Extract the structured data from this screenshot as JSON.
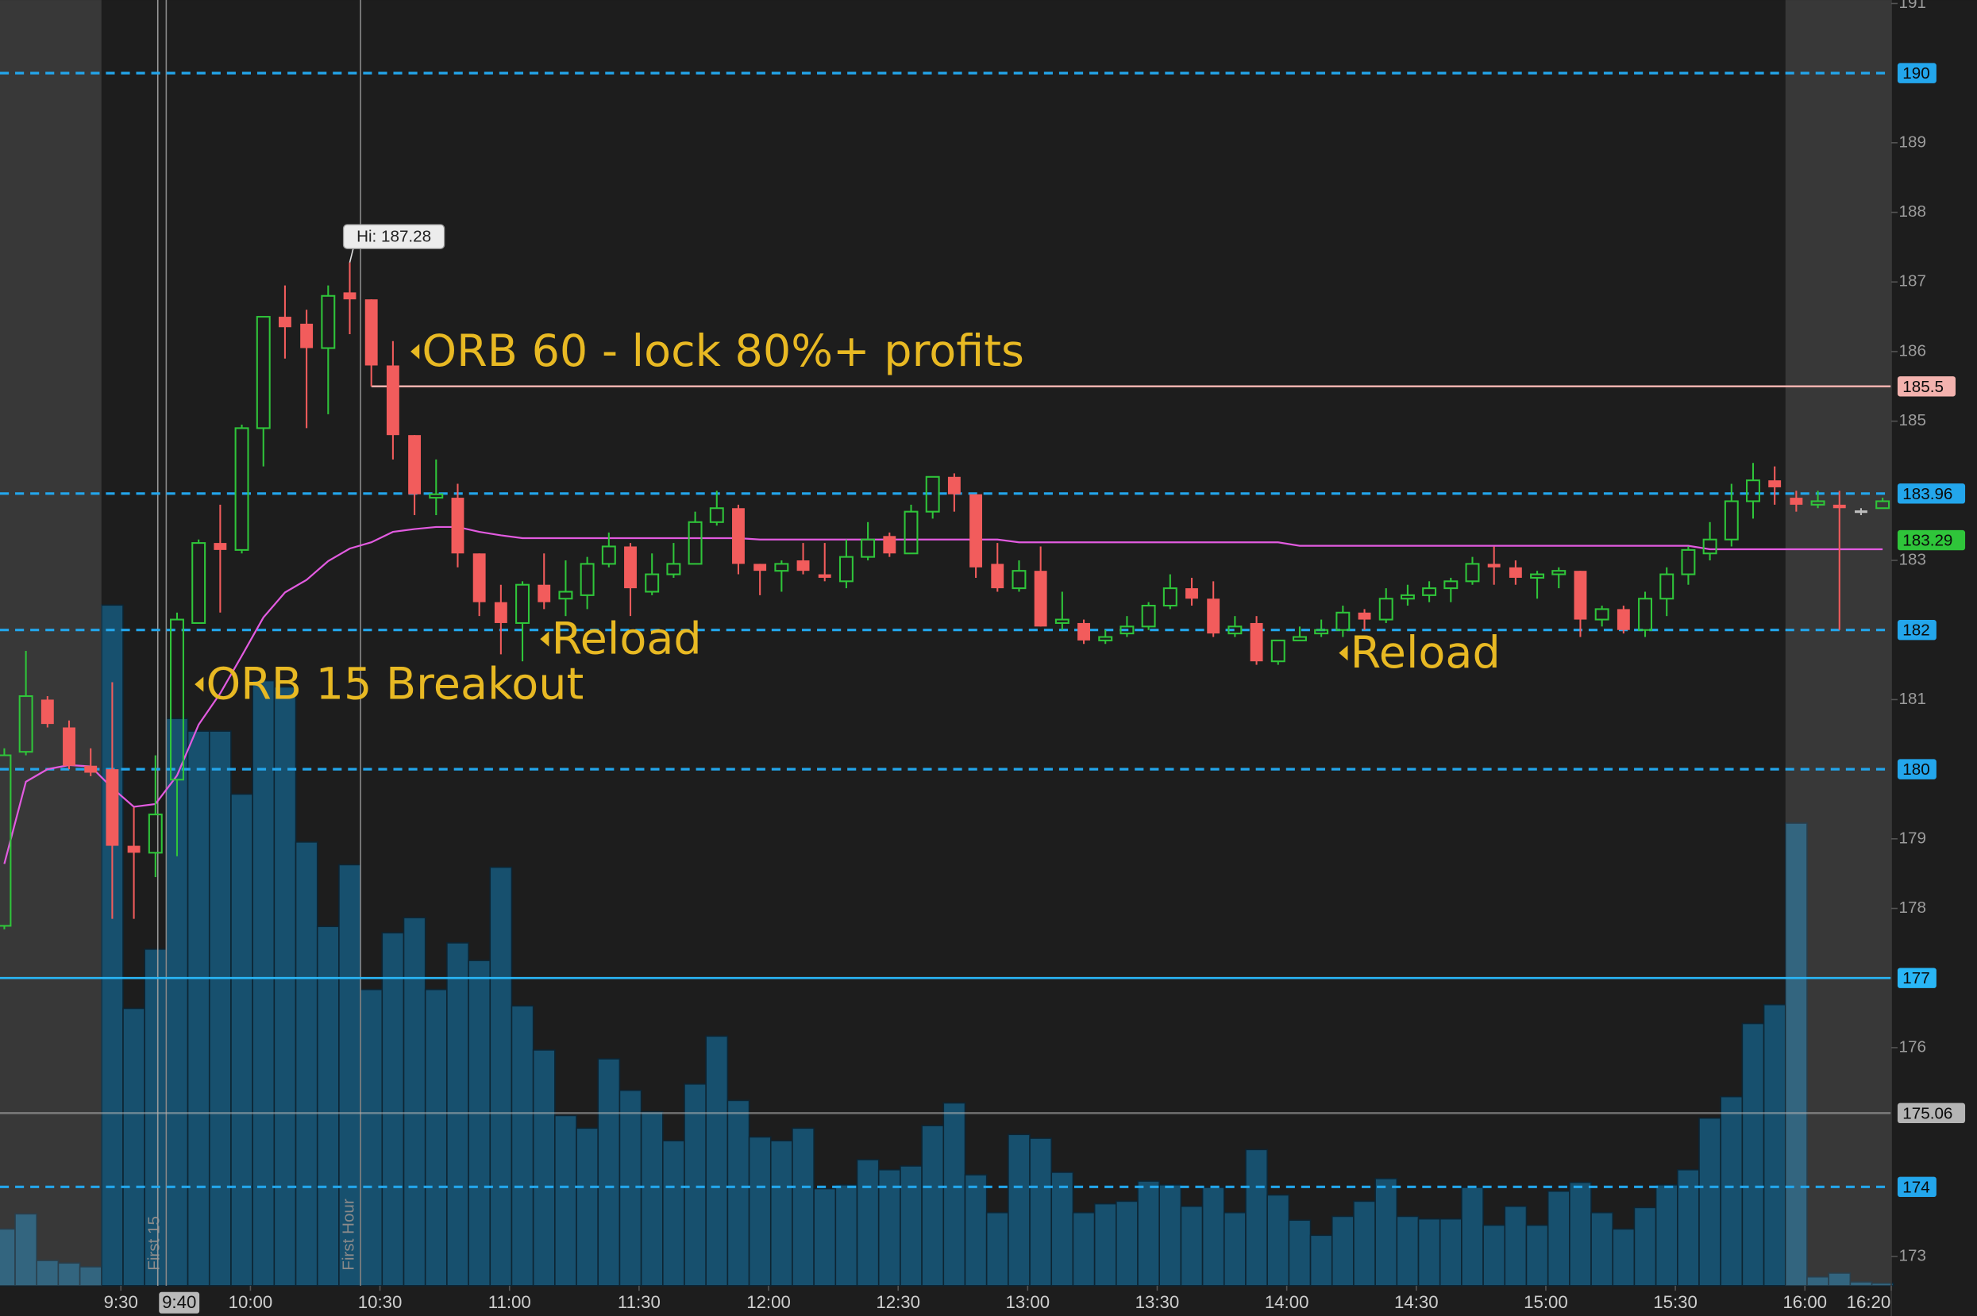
{
  "chart_data": {
    "type": "candlestick",
    "x": [
      "9:05",
      "9:10",
      "9:15",
      "9:20",
      "9:25",
      "9:30",
      "9:35",
      "9:40",
      "9:45",
      "9:50",
      "9:55",
      "10:00",
      "10:05",
      "10:10",
      "10:15",
      "10:20",
      "10:25",
      "10:30",
      "10:35",
      "10:40",
      "10:45",
      "10:50",
      "10:55",
      "11:00",
      "11:05",
      "11:10",
      "11:15",
      "11:20",
      "11:25",
      "11:30",
      "11:35",
      "11:40",
      "11:45",
      "11:50",
      "11:55",
      "12:00",
      "12:05",
      "12:10",
      "12:15",
      "12:20",
      "12:25",
      "12:30",
      "12:35",
      "12:40",
      "12:45",
      "12:50",
      "12:55",
      "13:00",
      "13:05",
      "13:10",
      "13:15",
      "13:20",
      "13:25",
      "13:30",
      "13:35",
      "13:40",
      "13:45",
      "13:50",
      "13:55",
      "14:00",
      "14:05",
      "14:10",
      "14:15",
      "14:20",
      "14:25",
      "14:30",
      "14:35",
      "14:40",
      "14:45",
      "14:50",
      "14:55",
      "15:00",
      "15:05",
      "15:10",
      "15:15",
      "15:20",
      "15:25",
      "15:30",
      "15:35",
      "15:40",
      "15:45",
      "15:50",
      "15:55",
      "16:00",
      "16:05",
      "16:10",
      "16:15",
      "16:20"
    ],
    "open": [
      177.75,
      180.25,
      181.0,
      180.6,
      180.05,
      180.0,
      178.9,
      178.8,
      179.85,
      182.1,
      183.25,
      183.15,
      184.9,
      186.5,
      186.4,
      186.05,
      186.85,
      186.75,
      185.8,
      184.8,
      183.9,
      183.9,
      183.1,
      182.4,
      182.1,
      182.65,
      182.45,
      182.5,
      182.95,
      183.2,
      182.55,
      182.8,
      182.95,
      183.55,
      183.75,
      182.95,
      182.85,
      183.0,
      182.8,
      182.7,
      183.05,
      183.35,
      183.1,
      183.7,
      184.2,
      183.95,
      182.95,
      182.6,
      182.85,
      182.1,
      182.1,
      181.85,
      181.95,
      182.05,
      182.35,
      182.6,
      182.45,
      181.95,
      182.1,
      181.55,
      181.85,
      181.95,
      182.0,
      182.25,
      182.15,
      182.45,
      182.5,
      182.6,
      182.7,
      182.95,
      182.9,
      182.75,
      182.8,
      182.85,
      182.15,
      182.3,
      182.0,
      182.45,
      182.8,
      183.1,
      183.3,
      183.85,
      184.15,
      183.9,
      183.8,
      183.8,
      183.7,
      183.75
    ],
    "high": [
      180.3,
      181.7,
      181.05,
      180.7,
      180.3,
      181.25,
      179.45,
      180.2,
      182.25,
      183.3,
      183.8,
      184.95,
      186.5,
      186.95,
      186.6,
      186.95,
      187.28,
      186.75,
      186.15,
      184.8,
      184.45,
      184.1,
      183.1,
      182.65,
      182.7,
      183.1,
      183.0,
      183.05,
      183.4,
      183.25,
      183.1,
      183.25,
      183.7,
      184.0,
      183.8,
      182.95,
      183.0,
      183.25,
      183.25,
      183.3,
      183.55,
      183.4,
      183.8,
      184.2,
      184.25,
      183.95,
      183.25,
      183.0,
      183.2,
      182.55,
      182.15,
      182.0,
      182.2,
      182.4,
      182.8,
      182.75,
      182.7,
      182.2,
      182.2,
      181.85,
      182.05,
      182.15,
      182.35,
      182.3,
      182.6,
      182.65,
      182.7,
      182.75,
      183.05,
      183.2,
      183.0,
      182.85,
      182.9,
      182.85,
      182.35,
      182.35,
      182.55,
      182.9,
      183.2,
      183.55,
      184.1,
      184.4,
      184.35,
      184.0,
      184.0,
      184.0,
      183.75,
      183.9
    ],
    "low": [
      177.7,
      180.2,
      180.6,
      180.0,
      179.9,
      177.85,
      177.85,
      178.45,
      178.75,
      182.1,
      182.25,
      183.1,
      184.35,
      185.9,
      184.9,
      185.1,
      186.25,
      185.5,
      184.45,
      183.65,
      183.65,
      182.9,
      182.2,
      181.65,
      181.55,
      182.3,
      182.2,
      182.3,
      182.9,
      182.2,
      182.5,
      182.75,
      182.95,
      183.5,
      182.8,
      182.5,
      182.55,
      182.8,
      182.7,
      182.6,
      183.0,
      183.05,
      183.1,
      183.6,
      183.7,
      182.75,
      182.55,
      182.55,
      182.05,
      182.0,
      181.8,
      181.8,
      181.9,
      182.0,
      182.3,
      182.35,
      181.9,
      181.9,
      181.5,
      181.5,
      181.85,
      181.9,
      181.9,
      182.0,
      182.1,
      182.35,
      182.4,
      182.4,
      182.65,
      182.65,
      182.65,
      182.45,
      182.6,
      181.9,
      182.05,
      181.95,
      181.9,
      182.2,
      182.65,
      183.0,
      183.2,
      183.6,
      183.8,
      183.7,
      183.75,
      182.0,
      183.65,
      183.75
    ],
    "close": [
      180.2,
      181.05,
      180.65,
      180.05,
      179.95,
      178.9,
      178.8,
      179.35,
      182.15,
      183.25,
      183.15,
      184.9,
      186.5,
      186.35,
      186.05,
      186.8,
      186.75,
      185.8,
      184.8,
      183.95,
      183.95,
      183.1,
      182.4,
      182.1,
      182.65,
      182.4,
      182.55,
      182.95,
      183.2,
      182.6,
      182.8,
      182.95,
      183.55,
      183.75,
      182.95,
      182.85,
      182.95,
      182.85,
      182.75,
      183.05,
      183.3,
      183.1,
      183.7,
      184.2,
      183.95,
      182.9,
      182.6,
      182.85,
      182.05,
      182.15,
      181.85,
      181.9,
      182.05,
      182.35,
      182.6,
      182.45,
      181.95,
      182.05,
      181.55,
      181.85,
      181.9,
      182.0,
      182.25,
      182.15,
      182.45,
      182.5,
      182.6,
      182.7,
      182.95,
      182.9,
      182.75,
      182.8,
      182.85,
      182.15,
      182.3,
      182.0,
      182.45,
      182.8,
      183.15,
      183.3,
      183.85,
      184.15,
      184.05,
      183.8,
      183.85,
      183.75,
      183.7,
      183.85
    ],
    "volume": [
      45,
      57,
      20,
      18,
      15,
      540,
      220,
      267,
      450,
      440,
      440,
      390,
      480,
      475,
      352,
      285,
      334,
      235,
      280,
      292,
      235,
      272,
      258,
      332,
      222,
      187,
      135,
      125,
      180,
      155,
      138,
      115,
      160,
      198,
      147,
      118,
      115,
      125,
      77,
      80,
      100,
      92,
      95,
      127,
      145,
      88,
      58,
      120,
      117,
      90,
      58,
      65,
      67,
      83,
      80,
      63,
      78,
      58,
      108,
      72,
      52,
      40,
      55,
      67,
      85,
      55,
      53,
      53,
      78,
      48,
      63,
      48,
      75,
      82,
      58,
      45,
      62,
      80,
      92,
      133,
      150,
      208,
      223,
      367,
      7,
      10,
      3,
      2
    ],
    "vwap": [
      178.64,
      179.82,
      180.0,
      180.06,
      180.04,
      179.73,
      179.46,
      179.5,
      179.91,
      180.64,
      181.09,
      181.63,
      182.18,
      182.54,
      182.72,
      182.99,
      183.17,
      183.26,
      183.41,
      183.45,
      183.48,
      183.48,
      183.41,
      183.36,
      183.32,
      183.32,
      183.32,
      183.32,
      183.32,
      183.32,
      183.32,
      183.32,
      183.32,
      183.32,
      183.32,
      183.3,
      183.3,
      183.3,
      183.3,
      183.3,
      183.3,
      183.3,
      183.3,
      183.3,
      183.3,
      183.3,
      183.3,
      183.26,
      183.26,
      183.26,
      183.26,
      183.26,
      183.26,
      183.26,
      183.26,
      183.26,
      183.26,
      183.26,
      183.26,
      183.26,
      183.21,
      183.21,
      183.21,
      183.21,
      183.21,
      183.21,
      183.21,
      183.21,
      183.21,
      183.21,
      183.21,
      183.21,
      183.21,
      183.21,
      183.21,
      183.21,
      183.21,
      183.21,
      183.21,
      183.16,
      183.16,
      183.16,
      183.16,
      183.16,
      183.16,
      183.16,
      183.16,
      183.16
    ],
    "xlim": [
      "9:02",
      "16:20"
    ],
    "ylim": [
      172.58,
      191.05
    ],
    "xticks": [
      "9:30",
      "10:00",
      "10:30",
      "11:00",
      "11:30",
      "12:00",
      "12:30",
      "13:00",
      "13:30",
      "14:00",
      "14:30",
      "15:00",
      "15:30",
      "16:00",
      "16:20"
    ],
    "yticks": [
      191,
      189,
      188,
      187,
      186,
      185,
      183,
      181,
      179,
      178,
      176,
      173
    ],
    "regular_session": [
      "9:30",
      "16:00"
    ],
    "cursor": "9:40",
    "markers": [
      {
        "label": "First 15",
        "time": "9:45"
      },
      {
        "label": "First Hour",
        "time": "10:30"
      }
    ],
    "levels": [
      {
        "value": 190,
        "color": "#23a6ec",
        "style": "dashed"
      },
      {
        "value": 185.5,
        "color": "#f3b2ae",
        "style": "solid",
        "from": "10:30"
      },
      {
        "value": 183.96,
        "color": "#23a6ec",
        "style": "dashed"
      },
      {
        "value": 183.29,
        "color": "#2fc53a",
        "style": "none"
      },
      {
        "value": 182,
        "color": "#23a6ec",
        "style": "dashed"
      },
      {
        "value": 180,
        "color": "#23a6ec",
        "style": "dashed"
      },
      {
        "value": 177,
        "color": "#29b6f6",
        "style": "solid"
      },
      {
        "value": 175.06,
        "color": "#b4b4b4",
        "style": "solid"
      },
      {
        "value": 174,
        "color": "#23a6ec",
        "style": "dashed"
      }
    ],
    "annotations": [
      {
        "text": "ORB 60 - lock 80%+ profits",
        "time": "10:35",
        "price": 186.0
      },
      {
        "text": "Reload",
        "time": "11:05",
        "price": 181.87
      },
      {
        "text": "ORB 15 Breakout",
        "time": "9:45",
        "price": 181.22
      },
      {
        "text": "Reload",
        "time": "14:10",
        "price": 181.67
      }
    ],
    "hi_label": "Hi: 187.28",
    "up_color": "#2fc53a",
    "down_color": "#f25c5c",
    "volume_color": "#17506e",
    "vwap_color": "#e25be0",
    "annotation_color": "#e8b923"
  }
}
